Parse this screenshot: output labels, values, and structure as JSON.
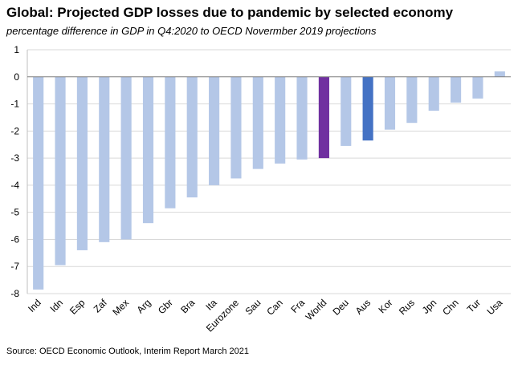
{
  "title": "Global: Projected GDP losses due to pandemic by selected economy",
  "subtitle": "percentage difference in GDP in Q4:2020  to OECD Novermber 2019 projections",
  "source": "Source: OECD Economic Outlook, Interim Report March 2021",
  "chart_data": {
    "type": "bar",
    "title": "Global: Projected GDP losses due to pandemic by selected economy",
    "subtitle": "percentage difference in GDP in Q4:2020  to OECD Novermber 2019 projections",
    "categories": [
      "Ind",
      "Idn",
      "Esp",
      "Zaf",
      "Mex",
      "Arg",
      "Gbr",
      "Bra",
      "Ita",
      "Eurozone",
      "Sau",
      "Can",
      "Fra",
      "World",
      "Deu",
      "Aus",
      "Kor",
      "Rus",
      "Jpn",
      "Chn",
      "Tur",
      "Usa"
    ],
    "values": [
      -7.85,
      -6.95,
      -6.4,
      -6.1,
      -6.0,
      -5.4,
      -4.85,
      -4.45,
      -4.0,
      -3.75,
      -3.4,
      -3.2,
      -3.05,
      -3.0,
      -2.55,
      -2.35,
      -1.95,
      -1.7,
      -1.25,
      -0.95,
      -0.8,
      0.2
    ],
    "ylim": [
      -8,
      1
    ],
    "yticks": [
      1,
      0,
      -1,
      -2,
      -3,
      -4,
      -5,
      -6,
      -7,
      -8
    ],
    "grid": true,
    "colors": {
      "default": "#b4c7e7",
      "World": "#7030a0",
      "Aus": "#4472c4"
    }
  }
}
